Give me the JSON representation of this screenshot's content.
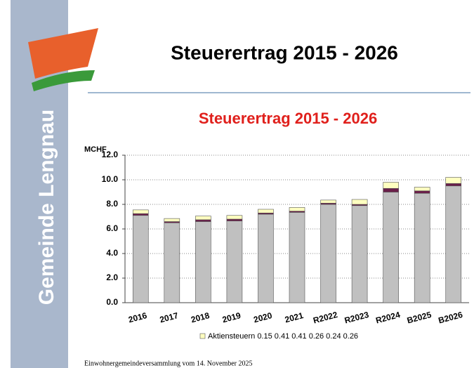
{
  "sidebar": {
    "text": "Gemeinde Lengnau"
  },
  "header": {
    "title": "Steuerertrag 2015 - 2026"
  },
  "footer": {
    "text": "Einwohnergemeindeversammlung vom 14. November 2025"
  },
  "chart_data": {
    "type": "bar",
    "stacked": true,
    "title": "Steuerertrag 2015 - 2026",
    "y_label": "MCHF",
    "categories": [
      "2016",
      "2017",
      "2018",
      "2019",
      "2020",
      "2021",
      "R2022",
      "R2023",
      "R2024",
      "B2025",
      "B2026"
    ],
    "series": [
      {
        "color": "#c0c0c0",
        "values": [
          7.1,
          6.5,
          6.6,
          6.65,
          7.2,
          7.35,
          8.0,
          7.9,
          9.0,
          8.9,
          9.5
        ]
      },
      {
        "color": "#6b1f4a",
        "values": [
          0.15,
          0.1,
          0.15,
          0.15,
          0.1,
          0.1,
          0.1,
          0.1,
          0.3,
          0.2,
          0.2
        ]
      },
      {
        "name": "Aktiensteuern 0.15 0.41 0.41 0.26 0.24 0.26",
        "color": "#ffffc0",
        "values": [
          0.3,
          0.25,
          0.3,
          0.3,
          0.3,
          0.3,
          0.25,
          0.4,
          0.5,
          0.3,
          0.5
        ]
      }
    ],
    "ylim": [
      0,
      12
    ],
    "yticks": [
      {
        "value": 0,
        "label": "0.0"
      },
      {
        "value": 2,
        "label": "2.0"
      },
      {
        "value": 4,
        "label": "4.0"
      },
      {
        "value": 6,
        "label": "6.0"
      },
      {
        "value": 8,
        "label": "8.0"
      },
      {
        "value": 10,
        "label": "10.0"
      },
      {
        "value": 12,
        "label": "12.0"
      }
    ],
    "grid": true
  }
}
